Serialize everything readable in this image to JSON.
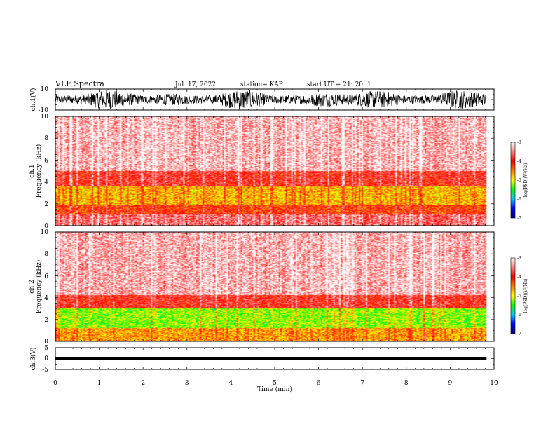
{
  "header": {
    "title": "VLF Spectra",
    "date": "Jul. 17, 2022",
    "station": "station= KAP",
    "start": "start UT =  21: 20: 1"
  },
  "chart_data": {
    "type": "heatmap",
    "x_axis": {
      "label": "Time (min)",
      "range": [
        0,
        10
      ],
      "ticks": [
        "0",
        "1",
        "2",
        "3",
        "4",
        "5",
        "6",
        "7",
        "8",
        "9",
        "10"
      ]
    },
    "panels": [
      {
        "kind": "waveform",
        "ylabel": "ch.1(V)",
        "ylim": [
          -10,
          10
        ],
        "yticks": [
          "10",
          "-10"
        ],
        "signal_amplitude": 10,
        "data_end_min": 9.83
      },
      {
        "kind": "spectrogram",
        "ylabel_channel": "ch.1",
        "ylabel": "Frequency (kHz)",
        "ylim": [
          0,
          10
        ],
        "yticks": [
          "0",
          "2",
          "4",
          "6",
          "8",
          "10"
        ],
        "data_end_min": 9.83,
        "bands_khz": [
          {
            "from": 0.0,
            "to": 1.0,
            "level": -3.6
          },
          {
            "from": 1.0,
            "to": 1.9,
            "level": -4.2
          },
          {
            "from": 1.9,
            "to": 3.6,
            "level": -4.7
          },
          {
            "from": 3.6,
            "to": 5.0,
            "level": -3.9
          },
          {
            "from": 5.0,
            "to": 10.0,
            "level": -3.3
          }
        ]
      },
      {
        "kind": "spectrogram",
        "ylabel_channel": "ch.2",
        "ylabel": "Frequency (kHz)",
        "ylim": [
          0,
          10
        ],
        "yticks": [
          "0",
          "2",
          "4",
          "6",
          "8",
          "10"
        ],
        "data_end_min": 9.83,
        "bands_khz": [
          {
            "from": 0.0,
            "to": 1.2,
            "level": -4.6
          },
          {
            "from": 1.2,
            "to": 3.0,
            "level": -5.2
          },
          {
            "from": 3.0,
            "to": 4.2,
            "level": -3.9
          },
          {
            "from": 4.2,
            "to": 10.0,
            "level": -3.3
          }
        ]
      },
      {
        "kind": "waveform",
        "ylabel": "ch.3(V)",
        "ylim": [
          -5,
          5
        ],
        "yticks": [
          "5",
          "0",
          "-5"
        ],
        "signal_amplitude": 0.6,
        "signal_offset": 0,
        "data_end_min": 9.83
      }
    ],
    "colorbar": {
      "label": "log(PSD)(V²/Hz)",
      "range": [
        -7,
        -3
      ],
      "ticks": [
        "-3",
        "-4",
        "-5",
        "-6",
        "-7"
      ],
      "colors": [
        "#000080",
        "#0000ff",
        "#00c8ff",
        "#00ff00",
        "#ffff00",
        "#ff8000",
        "#ff0000",
        "#ff8080",
        "#ffffff"
      ]
    }
  }
}
